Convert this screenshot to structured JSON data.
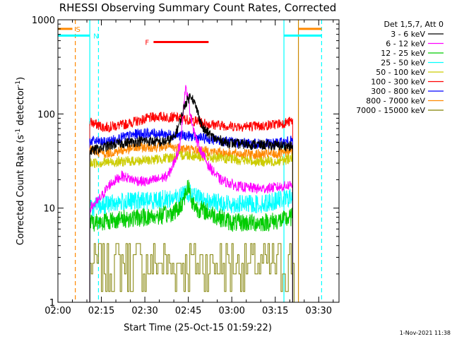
{
  "chart_data": {
    "type": "line",
    "title": "RHESSI Observing Summary Count Rates, Corrected",
    "xlabel": "Start Time (25-Oct-15 01:59:22)",
    "ylabel_main": "Corrected Count Rate (s",
    "ylabel_sup1": "-1",
    "ylabel_mid": " detector",
    "ylabel_sup2": "-1",
    "ylabel_end": ")",
    "yscale": "log",
    "ylim": [
      1,
      1000
    ],
    "xlim_minutes": [
      0,
      97
    ],
    "x_ticks": [
      "02:00",
      "02:15",
      "02:30",
      "02:45",
      "03:00",
      "03:15",
      "03:30"
    ],
    "x_tick_minutes": [
      0,
      15,
      30,
      45,
      60,
      75,
      90
    ],
    "y_ticks": [
      "1",
      "10",
      "100",
      "1000"
    ],
    "y_tick_values": [
      1,
      10,
      100,
      1000
    ],
    "legend_header": "Det 1,5,7, Att 0",
    "legend_position": "right",
    "timestamp": "1-Nov-2021 11:38",
    "data_window_minutes": [
      11,
      81
    ],
    "series": [
      {
        "name": "3 - 6 keV",
        "color": "#000000",
        "x": [
          11,
          20,
          30,
          36,
          40,
          42,
          44,
          46,
          48,
          50,
          54,
          58,
          62,
          70,
          78,
          81
        ],
        "y": [
          40,
          48,
          52,
          50,
          55,
          80,
          130,
          160,
          110,
          70,
          55,
          50,
          48,
          47,
          46,
          45
        ]
      },
      {
        "name": "6 - 12 keV",
        "color": "#ff00ff",
        "x": [
          11,
          14,
          18,
          22,
          26,
          30,
          34,
          38,
          40,
          42,
          43,
          44,
          45,
          46,
          48,
          52,
          56,
          62,
          70,
          78,
          81
        ],
        "y": [
          10,
          12,
          18,
          22,
          20,
          19,
          20,
          22,
          30,
          45,
          90,
          190,
          140,
          90,
          50,
          28,
          20,
          17,
          16,
          17,
          18
        ]
      },
      {
        "name": "12 - 25 keV",
        "color": "#00cc00",
        "x": [
          11,
          20,
          30,
          38,
          42,
          44,
          45,
          46,
          48,
          52,
          60,
          70,
          78,
          81
        ],
        "y": [
          7,
          7.5,
          8,
          8.5,
          10,
          14,
          18,
          12,
          10,
          9,
          7,
          7,
          7.5,
          8
        ]
      },
      {
        "name": "25 - 50 keV",
        "color": "#00ffff",
        "x": [
          11,
          20,
          30,
          38,
          42,
          44,
          46,
          50,
          60,
          70,
          78,
          81
        ],
        "y": [
          10,
          11.5,
          12,
          12.5,
          13,
          15,
          14,
          12,
          11,
          11,
          12.5,
          13
        ]
      },
      {
        "name": "50 - 100 keV",
        "color": "#cccc00",
        "x": [
          11,
          20,
          30,
          38,
          44,
          50,
          60,
          70,
          78,
          81
        ],
        "y": [
          30,
          31,
          32,
          34,
          37,
          35,
          33,
          31,
          32,
          35
        ]
      },
      {
        "name": "100 - 300 keV",
        "color": "#ff0000",
        "x": [
          11,
          16,
          22,
          28,
          34,
          40,
          46,
          52,
          60,
          70,
          78,
          81
        ],
        "y": [
          82,
          72,
          76,
          85,
          94,
          92,
          86,
          78,
          74,
          74,
          80,
          84
        ]
      },
      {
        "name": "300 - 800 keV",
        "color": "#0000ff",
        "x": [
          11,
          16,
          22,
          28,
          34,
          40,
          46,
          52,
          60,
          70,
          78,
          81
        ],
        "y": [
          52,
          50,
          56,
          62,
          62,
          60,
          58,
          54,
          50,
          48,
          50,
          52
        ]
      },
      {
        "name": "800 - 7000 keV",
        "color": "#ff8800",
        "x": [
          11,
          16,
          22,
          28,
          34,
          40,
          46,
          52,
          60,
          70,
          78,
          81
        ],
        "y": [
          42,
          38,
          41,
          44,
          45,
          44,
          42,
          40,
          38,
          37,
          38,
          41
        ]
      },
      {
        "name": "7000 - 15000 keV",
        "color": "#808000",
        "x": [
          11,
          81
        ],
        "y": [
          2.6,
          2.6
        ]
      }
    ],
    "annotations": [
      {
        "label": "S",
        "color": "#ff8800",
        "x_start": 0,
        "x_end": 5,
        "y": 800
      },
      {
        "label": "N",
        "color": "#00ffff",
        "x_start": 0,
        "x_end": 11,
        "y": 680
      },
      {
        "label": "F",
        "color": "#ff0000",
        "x_start": 33,
        "x_end": 52,
        "y": 580
      }
    ],
    "right_bars": [
      {
        "color": "#ff8800",
        "x_start": 83,
        "x_end": 91,
        "y": 800
      },
      {
        "color": "#00ffff",
        "x_start": 78,
        "x_end": 91,
        "y": 680
      }
    ],
    "vlines": [
      {
        "x": 6,
        "color": "#ff8800",
        "style": "dashed"
      },
      {
        "x": 11,
        "color": "#00ffff",
        "style": "solid"
      },
      {
        "x": 14,
        "color": "#00ffff",
        "style": "dashed"
      },
      {
        "x": 78,
        "color": "#00ffff",
        "style": "solid"
      },
      {
        "x": 83,
        "color": "#cc8800",
        "style": "solid"
      },
      {
        "x": 91,
        "color": "#00ffff",
        "style": "dashed"
      }
    ]
  }
}
